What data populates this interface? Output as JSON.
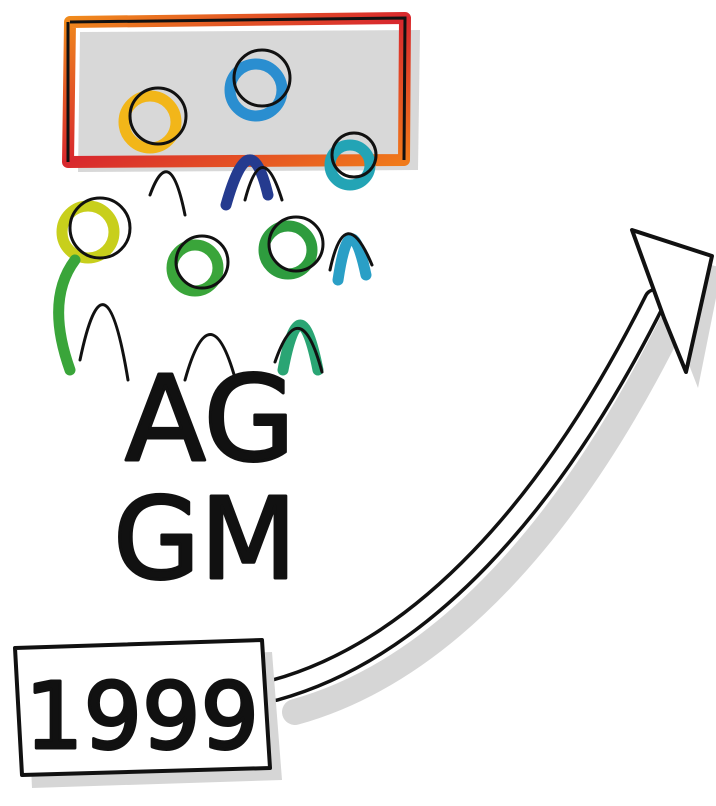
{
  "heading": {
    "line1": "AG",
    "line2": "GM"
  },
  "year_box": {
    "label": "1999"
  }
}
